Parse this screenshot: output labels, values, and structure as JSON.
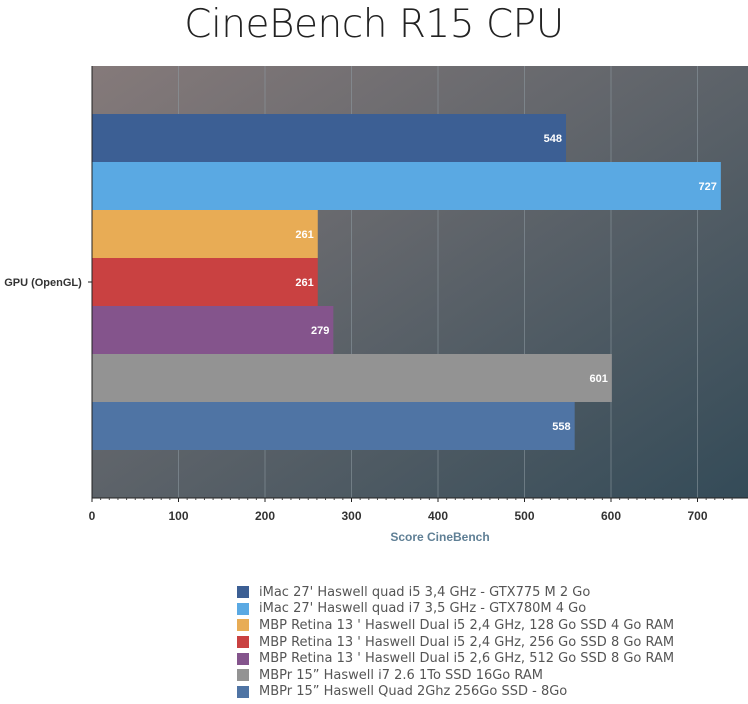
{
  "chart_data": {
    "type": "bar",
    "orientation": "horizontal",
    "title": "CineBench R15 CPU",
    "xlabel": "Score CineBench",
    "ylabel": "",
    "categories": [
      "GPU (OpenGL)"
    ],
    "xlim": [
      0,
      750
    ],
    "xticks": [
      0,
      100,
      200,
      300,
      400,
      500,
      600,
      700
    ],
    "grid": true,
    "legend_position": "bottom",
    "series": [
      {
        "name": "iMac 27' Haswell quad i5 3,4 GHz - GTX775 M 2 Go",
        "values": [
          548
        ],
        "color": "#3c5f94"
      },
      {
        "name": "iMac 27' Haswell quad i7 3,5 GHz - GTX780M 4 Go",
        "values": [
          727
        ],
        "color": "#5aa9e3"
      },
      {
        "name": "MBP Retina 13 ' Haswell Dual i5 2,4 GHz, 128 Go SSD 4 Go RAM",
        "values": [
          261
        ],
        "color": "#e8ac55"
      },
      {
        "name": "MBP Retina 13 ' Haswell Dual i5 2,4 GHz, 256 Go SSD 8 Go RAM",
        "values": [
          261
        ],
        "color": "#c94141"
      },
      {
        "name": "MBP Retina 13 ' Haswell Dual i5 2,6 GHz, 512 Go SSD 8 Go RAM",
        "values": [
          279
        ],
        "color": "#84548c"
      },
      {
        "name": "MBPr 15” Haswell i7 2.6 1To SSD 16Go RAM",
        "values": [
          601
        ],
        "color": "#939393"
      },
      {
        "name": "MBPr 15” Haswell Quad 2Ghz 256Go SSD - 8Go",
        "values": [
          558
        ],
        "color": "#4f74a4"
      }
    ]
  }
}
